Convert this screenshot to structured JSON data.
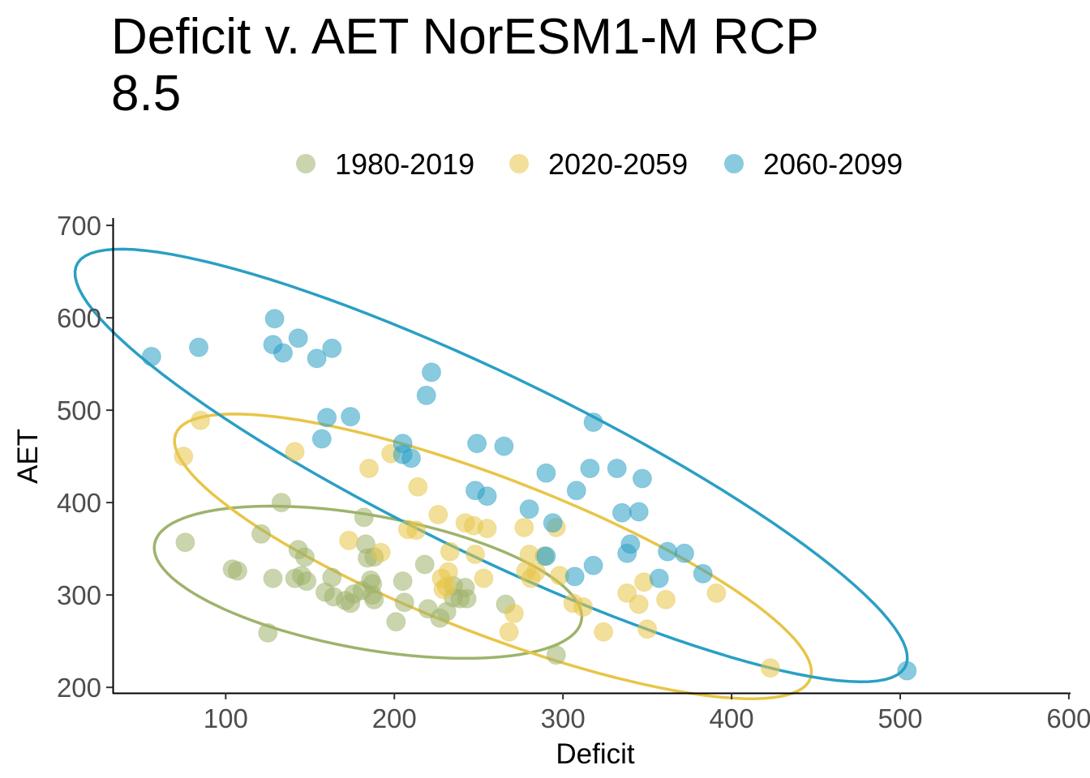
{
  "chart_data": {
    "type": "scatter",
    "title_line1": "Deficit v. AET NorESM1-M RCP",
    "title_line2": "8.5",
    "xlabel": "Deficit",
    "ylabel": "AET",
    "xlim": [
      33,
      601
    ],
    "ylim": [
      194,
      708
    ],
    "xticks": [
      100,
      200,
      300,
      400,
      500,
      600
    ],
    "xtick_labels": [
      "100",
      "200",
      "300",
      "400",
      "500",
      "600"
    ],
    "yticks": [
      200,
      300,
      400,
      500,
      600,
      700
    ],
    "ytick_labels": [
      "200",
      "300",
      "400",
      "500",
      "600",
      "700"
    ],
    "grid": false,
    "legend_position": "top",
    "ellipses": "data ellipse per series",
    "series": [
      {
        "name": "1980-2019",
        "color": "#9EB36B",
        "points": [
          [
            76,
            357
          ],
          [
            104,
            328
          ],
          [
            107,
            326
          ],
          [
            121,
            366
          ],
          [
            125,
            259
          ],
          [
            128,
            318
          ],
          [
            133,
            400
          ],
          [
            141,
            318
          ],
          [
            143,
            349
          ],
          [
            145,
            321
          ],
          [
            147,
            341
          ],
          [
            148,
            315
          ],
          [
            159,
            303
          ],
          [
            163,
            319
          ],
          [
            164,
            298
          ],
          [
            171,
            294
          ],
          [
            174,
            291
          ],
          [
            176,
            301
          ],
          [
            181,
            305
          ],
          [
            182,
            384
          ],
          [
            183,
            355
          ],
          [
            184,
            340
          ],
          [
            186,
            316
          ],
          [
            187,
            312
          ],
          [
            187,
            300
          ],
          [
            188,
            295
          ],
          [
            188,
            341
          ],
          [
            201,
            271
          ],
          [
            205,
            315
          ],
          [
            206,
            292
          ],
          [
            218,
            333
          ],
          [
            220,
            285
          ],
          [
            227,
            275
          ],
          [
            231,
            282
          ],
          [
            235,
            310
          ],
          [
            235,
            297
          ],
          [
            239,
            296
          ],
          [
            242,
            308
          ],
          [
            243,
            296
          ],
          [
            266,
            290
          ],
          [
            289,
            342
          ],
          [
            296,
            235
          ]
        ]
      },
      {
        "name": "2020-2059",
        "color": "#E8C547",
        "points": [
          [
            75,
            450
          ],
          [
            85,
            489
          ],
          [
            141,
            455
          ],
          [
            173,
            359
          ],
          [
            185,
            437
          ],
          [
            192,
            346
          ],
          [
            198,
            453
          ],
          [
            208,
            371
          ],
          [
            213,
            370
          ],
          [
            214,
            417
          ],
          [
            226,
            387
          ],
          [
            228,
            318
          ],
          [
            229,
            306
          ],
          [
            231,
            309
          ],
          [
            232,
            325
          ],
          [
            233,
            347
          ],
          [
            242,
            378
          ],
          [
            247,
            375
          ],
          [
            248,
            344
          ],
          [
            253,
            318
          ],
          [
            255,
            372
          ],
          [
            268,
            260
          ],
          [
            271,
            280
          ],
          [
            277,
            373
          ],
          [
            278,
            326
          ],
          [
            280,
            344
          ],
          [
            281,
            318
          ],
          [
            284,
            325
          ],
          [
            296,
            373
          ],
          [
            298,
            321
          ],
          [
            306,
            291
          ],
          [
            312,
            287
          ],
          [
            324,
            260
          ],
          [
            338,
            302
          ],
          [
            345,
            290
          ],
          [
            348,
            314
          ],
          [
            350,
            263
          ],
          [
            361,
            295
          ],
          [
            391,
            302
          ],
          [
            423,
            221
          ]
        ]
      },
      {
        "name": "2060-2099",
        "color": "#2A9FC4",
        "points": [
          [
            56,
            558
          ],
          [
            84,
            568
          ],
          [
            128,
            571
          ],
          [
            129,
            599
          ],
          [
            134,
            562
          ],
          [
            143,
            578
          ],
          [
            154,
            556
          ],
          [
            157,
            469
          ],
          [
            160,
            492
          ],
          [
            163,
            567
          ],
          [
            174,
            493
          ],
          [
            205,
            464
          ],
          [
            205,
            452
          ],
          [
            210,
            448
          ],
          [
            219,
            516
          ],
          [
            222,
            541
          ],
          [
            248,
            413
          ],
          [
            249,
            464
          ],
          [
            255,
            407
          ],
          [
            265,
            461
          ],
          [
            280,
            393
          ],
          [
            290,
            342
          ],
          [
            290,
            432
          ],
          [
            294,
            378
          ],
          [
            307,
            320
          ],
          [
            308,
            413
          ],
          [
            316,
            437
          ],
          [
            318,
            332
          ],
          [
            318,
            487
          ],
          [
            332,
            437
          ],
          [
            335,
            389
          ],
          [
            338,
            345
          ],
          [
            340,
            355
          ],
          [
            345,
            390
          ],
          [
            347,
            426
          ],
          [
            357,
            318
          ],
          [
            362,
            347
          ],
          [
            372,
            345
          ],
          [
            383,
            323
          ],
          [
            504,
            218
          ]
        ]
      }
    ]
  }
}
